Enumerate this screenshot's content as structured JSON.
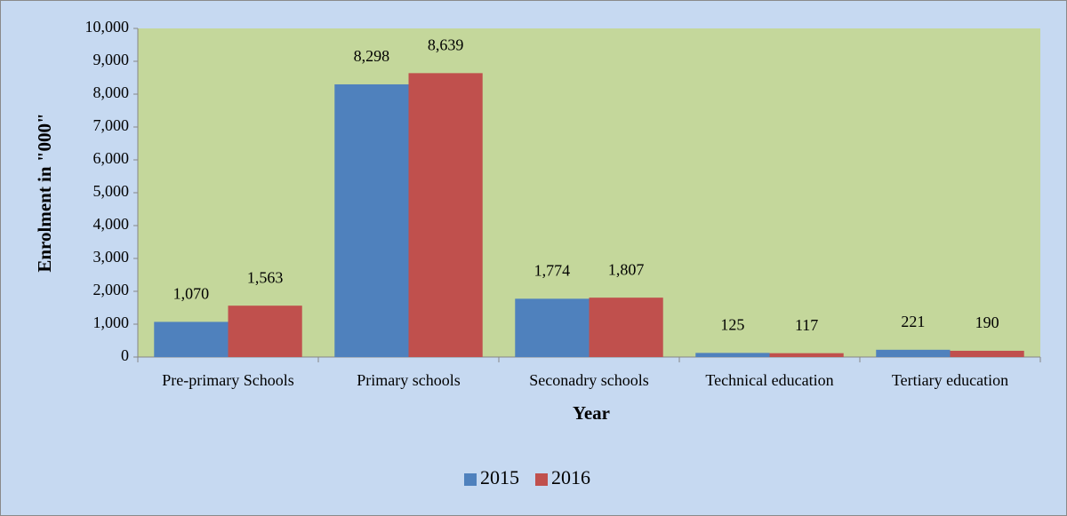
{
  "chart_data": {
    "type": "bar",
    "categories": [
      "Pre-primary Schools",
      "Primary schools",
      "Seconadry schools",
      "Technical education",
      "Tertiary education"
    ],
    "series": [
      {
        "name": "2015",
        "color": "#4f81bd",
        "values": [
          1070,
          8298,
          1774,
          125,
          221
        ],
        "value_labels": [
          "1,070",
          "8,298",
          "1,774",
          "125",
          "221"
        ]
      },
      {
        "name": "2016",
        "color": "#c0504d",
        "values": [
          1563,
          8639,
          1807,
          117,
          190
        ],
        "value_labels": [
          "1,563",
          "8,639",
          "1,807",
          "117",
          "190"
        ]
      }
    ],
    "x_label": "Year",
    "y_label": "Enrolment in \"000\"",
    "ylim": [
      0,
      10000
    ],
    "yticks": [
      0,
      {
        "value": 1000,
        "label": "1,000"
      },
      {
        "value": 2000,
        "label": "2,000"
      },
      {
        "value": 3000,
        "label": "3,000"
      },
      {
        "value": 4000,
        "label": "4,000"
      },
      {
        "value": 5000,
        "label": "5,000"
      },
      {
        "value": 6000,
        "label": "6,000"
      },
      {
        "value": 7000,
        "label": "7,000"
      },
      {
        "value": 8000,
        "label": "8,000"
      },
      {
        "value": 9000,
        "label": "9,000"
      },
      {
        "value": 10000,
        "label": "10,000"
      }
    ],
    "legend": "bottom"
  }
}
